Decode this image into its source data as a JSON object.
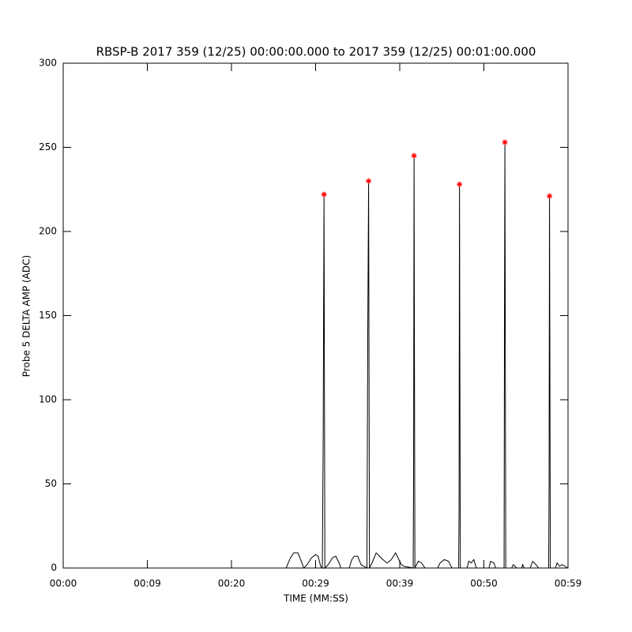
{
  "chart_data": {
    "type": "line",
    "title": "RBSP-B 2017 359 (12/25) 00:00:00.000 to 2017 359 (12/25) 00:01:00.000",
    "x_label": "TIME (MM:SS)",
    "y_label": "Probe 5 DELTA AMP (ADC)",
    "xlim": [
      0,
      60
    ],
    "ylim": [
      0,
      300
    ],
    "xticks": [
      {
        "value": 0,
        "label": "00:00"
      },
      {
        "value": 10,
        "label": "00:09"
      },
      {
        "value": 20,
        "label": "00:20"
      },
      {
        "value": 30,
        "label": "00:29"
      },
      {
        "value": 40,
        "label": "00:39"
      },
      {
        "value": 50,
        "label": "00:50"
      },
      {
        "value": 60,
        "label": "00:59"
      }
    ],
    "yticks": [
      0,
      50,
      100,
      150,
      200,
      250,
      300
    ],
    "color": "#000000",
    "x": [
      0,
      26.5,
      27.0,
      27.4,
      27.9,
      28.3,
      28.6,
      29.0,
      29.5,
      30.0,
      30.3,
      30.6,
      30.8,
      30.9,
      31.0,
      31.1,
      31.5,
      32.0,
      32.4,
      32.8,
      33.0,
      34.0,
      34.3,
      34.6,
      35.0,
      35.4,
      36.1,
      36.2,
      36.3,
      36.4,
      36.7,
      37.2,
      37.6,
      38.0,
      38.5,
      39.0,
      39.5,
      39.9,
      40.2,
      40.5,
      41.6,
      41.65,
      41.7,
      41.8,
      42.2,
      42.6,
      43.0,
      44.5,
      44.8,
      45.3,
      45.8,
      46.2,
      47.0,
      47.05,
      47.1,
      47.2,
      48.0,
      48.2,
      48.5,
      48.8,
      49.1,
      50.6,
      50.8,
      51.2,
      51.4,
      52.4,
      52.45,
      52.5,
      52.6,
      53.3,
      53.5,
      53.9,
      54.5,
      54.6,
      54.8,
      55.5,
      55.8,
      56.2,
      56.5,
      57.7,
      57.75,
      57.8,
      57.9,
      58.5,
      58.7,
      59.0,
      59.3,
      60
    ],
    "values": [
      0,
      0,
      6,
      9,
      9,
      4,
      0,
      2,
      6,
      8,
      7,
      1,
      0,
      76,
      222,
      0,
      2,
      6,
      7,
      3,
      0,
      0,
      5,
      7,
      7,
      2,
      0,
      140,
      230,
      0,
      3,
      9,
      7,
      5,
      3,
      5,
      9,
      5,
      2,
      1,
      0,
      62,
      245,
      0,
      4,
      3,
      0,
      0,
      3,
      5,
      4,
      0,
      0,
      35,
      228,
      0,
      0,
      4,
      3,
      5,
      0,
      0,
      4,
      3,
      0,
      0,
      150,
      253,
      0,
      0,
      2,
      0,
      0,
      2,
      0,
      0,
      4,
      2,
      0,
      0,
      50,
      221,
      0,
      0,
      3,
      1,
      2,
      0
    ],
    "markers": {
      "symbol": "*",
      "color": "#ff0000",
      "x": [
        31.0,
        36.3,
        41.7,
        47.1,
        52.5,
        57.8
      ],
      "values": [
        222,
        230,
        245,
        228,
        253,
        221
      ]
    }
  }
}
